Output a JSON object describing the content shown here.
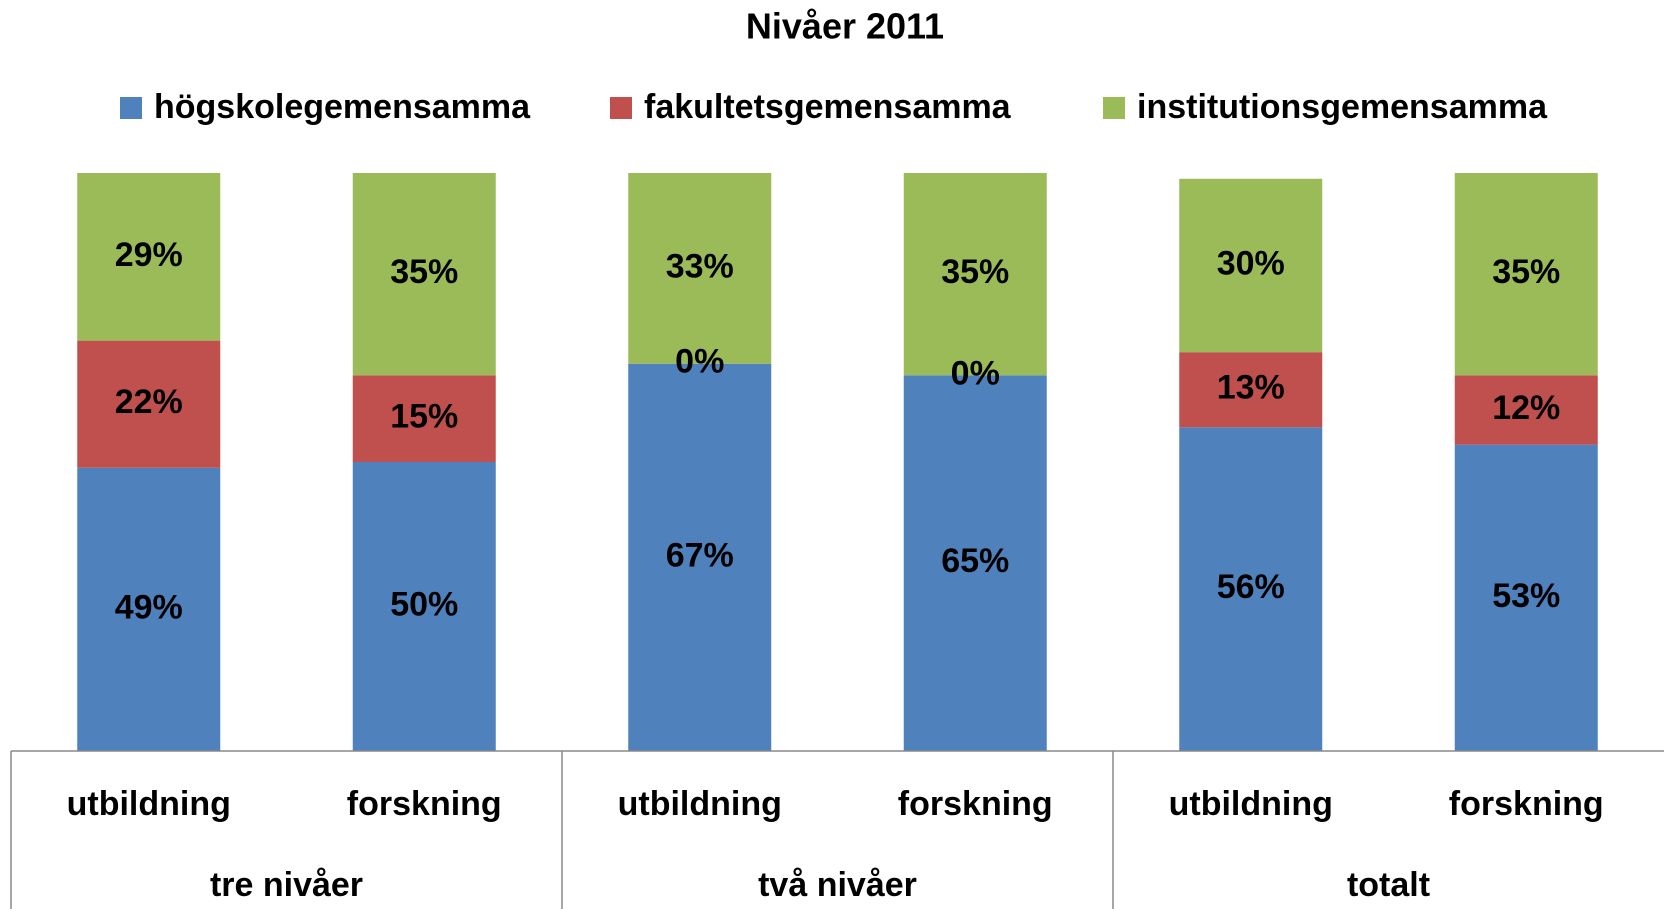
{
  "chart_data": {
    "type": "stacked-bar",
    "title": "Nivåer 2011",
    "categories": [
      "utbildning",
      "forskning",
      "utbildning",
      "forskning",
      "utbildning",
      "forskning"
    ],
    "groups": [
      "tre nivåer",
      "två nivåer",
      "totalt"
    ],
    "series": [
      {
        "name": "högskolegemensamma",
        "color": "#4f81bd",
        "values": [
          49,
          50,
          67,
          65,
          56,
          53
        ],
        "value_labels": [
          "49%",
          "50%",
          "67%",
          "65%",
          "56%",
          "53%"
        ]
      },
      {
        "name": "fakultetsgemensamma",
        "color": "#c0504d",
        "values": [
          22,
          15,
          0,
          0,
          13,
          12
        ],
        "value_labels": [
          "22%",
          "15%",
          "0%",
          "0%",
          "13%",
          "12%"
        ]
      },
      {
        "name": "institutionsgemensamma",
        "color": "#9bbb59",
        "values": [
          29,
          35,
          33,
          35,
          30,
          35
        ],
        "value_labels": [
          "29%",
          "35%",
          "33%",
          "35%",
          "30%",
          "35%"
        ]
      }
    ],
    "ylim": [
      0,
      100
    ],
    "legend": "top"
  }
}
